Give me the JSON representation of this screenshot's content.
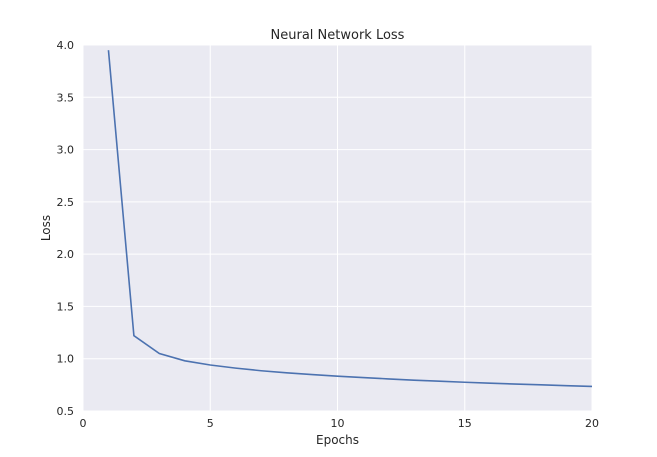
{
  "chart_data": {
    "type": "line",
    "title": "Neural Network Loss",
    "xlabel": "Epochs",
    "ylabel": "Loss",
    "xlim": [
      0,
      20
    ],
    "ylim": [
      0.5,
      4.0
    ],
    "x_ticks": [
      0,
      5,
      10,
      15,
      20
    ],
    "x_tick_labels": [
      "0",
      "5",
      "10",
      "15",
      "20"
    ],
    "y_ticks": [
      0.5,
      1.0,
      1.5,
      2.0,
      2.5,
      3.0,
      3.5,
      4.0
    ],
    "y_tick_labels": [
      "0.5",
      "1.0",
      "1.5",
      "2.0",
      "2.5",
      "3.0",
      "3.5",
      "4.0"
    ],
    "grid": true,
    "series": [
      {
        "x": [
          1,
          2,
          3,
          4,
          5,
          6,
          7,
          8,
          9,
          10,
          11,
          12,
          13,
          14,
          15,
          16,
          17,
          18,
          19,
          20
        ],
        "values": [
          3.95,
          1.22,
          1.05,
          0.98,
          0.94,
          0.91,
          0.885,
          0.865,
          0.848,
          0.833,
          0.82,
          0.807,
          0.795,
          0.785,
          0.775,
          0.766,
          0.758,
          0.75,
          0.742,
          0.735
        ],
        "color": "#4c72b0"
      }
    ],
    "colors": {
      "plot_background": "#eaeaf2",
      "grid": "#ffffff",
      "line": "#4c72b0"
    }
  }
}
